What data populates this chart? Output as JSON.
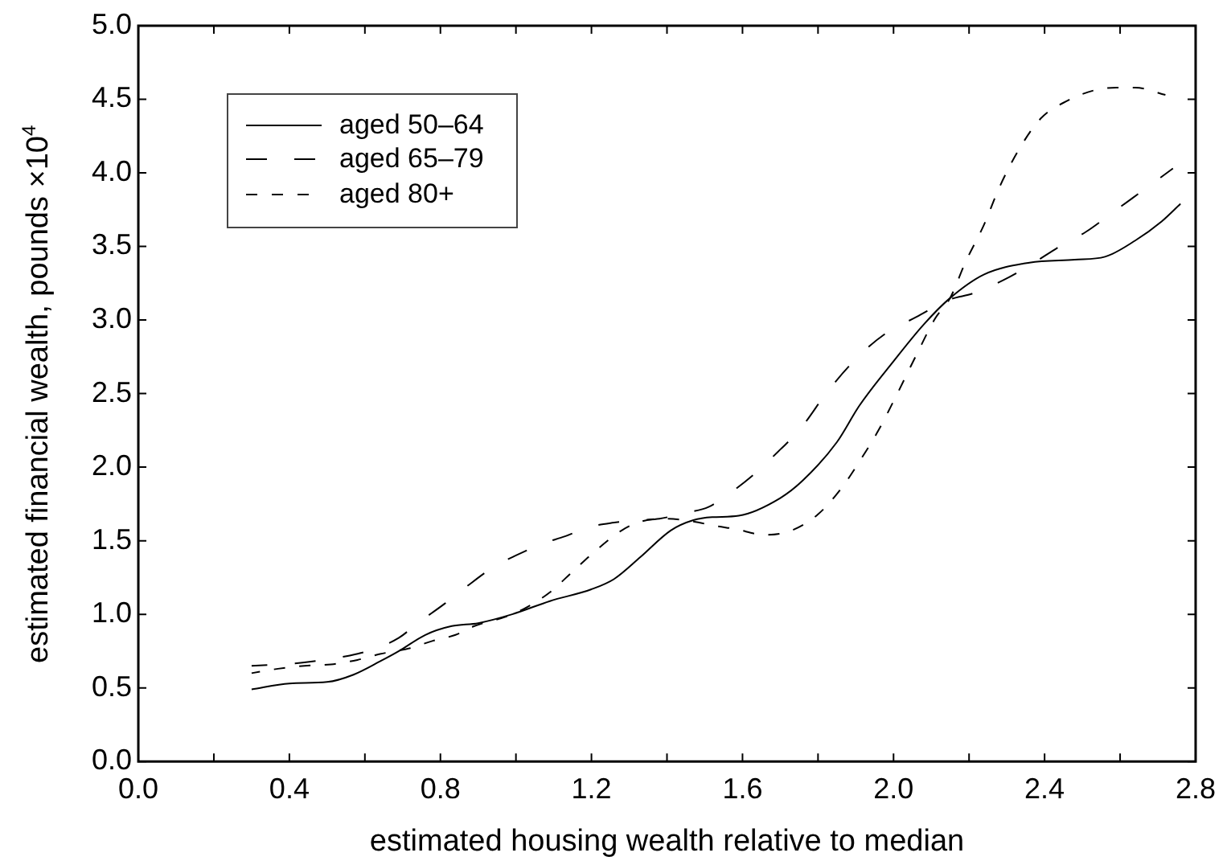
{
  "chart_data": {
    "type": "line",
    "xlabel": "estimated housing wealth relative to median",
    "ylabel": "estimated financial wealth, pounds ×10$^{4}$",
    "xlim": [
      0,
      2.8
    ],
    "ylim": [
      0,
      5
    ],
    "xticks": [
      {
        "value": 0,
        "label": "0.0"
      },
      {
        "value": 0.2,
        "label": null
      },
      {
        "value": 0.4,
        "label": "0.4"
      },
      {
        "value": 0.6,
        "label": null
      },
      {
        "value": 0.8,
        "label": "0.8"
      },
      {
        "value": 1.0,
        "label": null
      },
      {
        "value": 1.2,
        "label": "1.2"
      },
      {
        "value": 1.4,
        "label": null
      },
      {
        "value": 1.6,
        "label": "1.6"
      },
      {
        "value": 1.8,
        "label": null
      },
      {
        "value": 2.0,
        "label": "2.0"
      },
      {
        "value": 2.2,
        "label": null
      },
      {
        "value": 2.4,
        "label": "2.4"
      },
      {
        "value": 2.6,
        "label": null
      },
      {
        "value": 2.8,
        "label": "2.8"
      }
    ],
    "yticks": [
      {
        "value": 0,
        "label": "0.0"
      },
      {
        "value": 0.5,
        "label": "0.5"
      },
      {
        "value": 1.0,
        "label": "1.0"
      },
      {
        "value": 1.5,
        "label": "1.5"
      },
      {
        "value": 2.0,
        "label": "2.0"
      },
      {
        "value": 2.5,
        "label": "2.5"
      },
      {
        "value": 3.0,
        "label": "3.0"
      },
      {
        "value": 3.5,
        "label": "3.5"
      },
      {
        "value": 4.0,
        "label": "4.0"
      },
      {
        "value": 4.5,
        "label": "4.5"
      },
      {
        "value": 5.0,
        "label": "5.0"
      }
    ],
    "legend": "top left",
    "series": [
      {
        "name": "aged 50–64",
        "color": "#000000",
        "line_style": "solid",
        "x": [
          0.3,
          0.4,
          0.5,
          0.57,
          0.64,
          0.69,
          0.76,
          0.83,
          0.9,
          0.99,
          1.09,
          1.2,
          1.26,
          1.33,
          1.41,
          1.47,
          1.52,
          1.59,
          1.7,
          1.76,
          1.85,
          1.91,
          2.0,
          2.08,
          2.15,
          2.24,
          2.36,
          2.48,
          2.56,
          2.64,
          2.71,
          2.76
        ],
        "values": [
          0.49,
          0.53,
          0.54,
          0.59,
          0.68,
          0.75,
          0.86,
          0.92,
          0.94,
          1.0,
          1.09,
          1.17,
          1.24,
          1.39,
          1.57,
          1.64,
          1.66,
          1.67,
          1.79,
          1.91,
          2.17,
          2.42,
          2.72,
          2.97,
          3.15,
          3.31,
          3.39,
          3.41,
          3.43,
          3.54,
          3.67,
          3.79
        ]
      },
      {
        "name": "aged 65–79",
        "color": "#000000",
        "line_style": "dashed",
        "x": [
          0.3,
          0.43,
          0.49,
          0.56,
          0.62,
          0.69,
          0.74,
          0.81,
          0.87,
          0.94,
          1.0,
          1.07,
          1.13,
          1.19,
          1.25,
          1.33,
          1.38,
          1.45,
          1.51,
          1.57,
          1.63,
          1.7,
          1.75,
          1.83,
          1.91,
          1.98,
          2.06,
          2.15,
          2.21,
          2.29,
          2.36,
          2.44,
          2.51,
          2.58,
          2.66,
          2.74
        ],
        "values": [
          0.65,
          0.67,
          0.69,
          0.72,
          0.76,
          0.84,
          0.94,
          1.07,
          1.19,
          1.32,
          1.4,
          1.48,
          1.53,
          1.59,
          1.62,
          1.64,
          1.65,
          1.69,
          1.73,
          1.83,
          1.95,
          2.12,
          2.25,
          2.53,
          2.76,
          2.91,
          3.02,
          3.14,
          3.18,
          3.27,
          3.37,
          3.5,
          3.6,
          3.73,
          3.88,
          4.03
        ]
      },
      {
        "name": "aged 80+",
        "color": "#000000",
        "line_style": "dotted",
        "x": [
          0.3,
          0.37,
          0.44,
          0.51,
          0.58,
          0.64,
          0.72,
          0.78,
          0.84,
          0.89,
          0.98,
          1.03,
          1.09,
          1.15,
          1.21,
          1.28,
          1.33,
          1.4,
          1.47,
          1.53,
          1.58,
          1.66,
          1.73,
          1.8,
          1.86,
          1.91,
          1.96,
          2.01,
          2.06,
          2.11,
          2.15,
          2.19,
          2.24,
          2.28,
          2.33,
          2.39,
          2.46,
          2.53,
          2.59,
          2.64,
          2.72
        ],
        "values": [
          0.6,
          0.63,
          0.65,
          0.66,
          0.69,
          0.73,
          0.77,
          0.82,
          0.86,
          0.92,
          0.99,
          1.05,
          1.15,
          1.29,
          1.43,
          1.57,
          1.63,
          1.65,
          1.63,
          1.6,
          1.58,
          1.54,
          1.57,
          1.68,
          1.85,
          2.04,
          2.25,
          2.5,
          2.76,
          3.01,
          3.15,
          3.39,
          3.65,
          3.9,
          4.15,
          4.37,
          4.49,
          4.56,
          4.58,
          4.58,
          4.53
        ]
      }
    ]
  }
}
